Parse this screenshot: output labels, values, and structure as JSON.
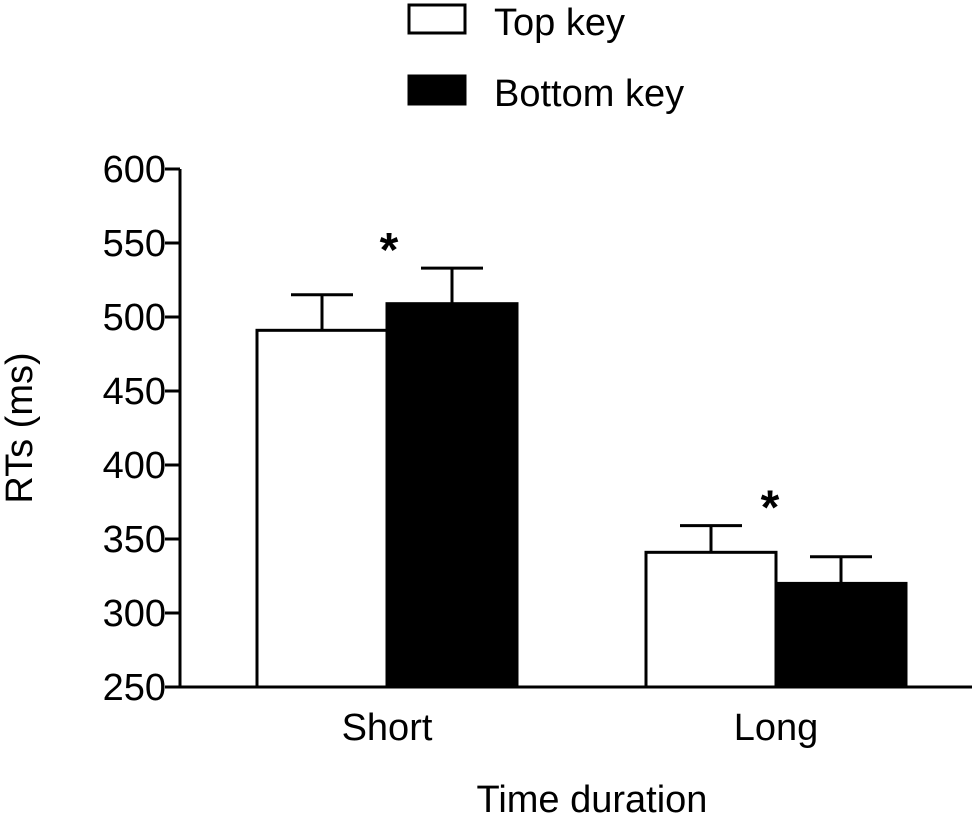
{
  "chart_data": {
    "type": "bar",
    "categories": [
      "Short",
      "Long"
    ],
    "series": [
      {
        "name": "Top key",
        "color": "#ffffff",
        "values": [
          491,
          341
        ],
        "errors": [
          24,
          18
        ]
      },
      {
        "name": "Bottom key",
        "color": "#000000",
        "values": [
          509,
          320
        ],
        "errors": [
          24,
          18
        ]
      }
    ],
    "xlabel": "Time duration",
    "ylabel": "RTs (ms)",
    "ylim": [
      250,
      600
    ],
    "yticks": [
      250,
      300,
      350,
      400,
      450,
      500,
      550,
      600
    ],
    "legend_position": "top-center",
    "grid": false,
    "annotations": [
      {
        "category": "Short",
        "text": "*"
      },
      {
        "category": "Long",
        "text": "*"
      }
    ]
  }
}
